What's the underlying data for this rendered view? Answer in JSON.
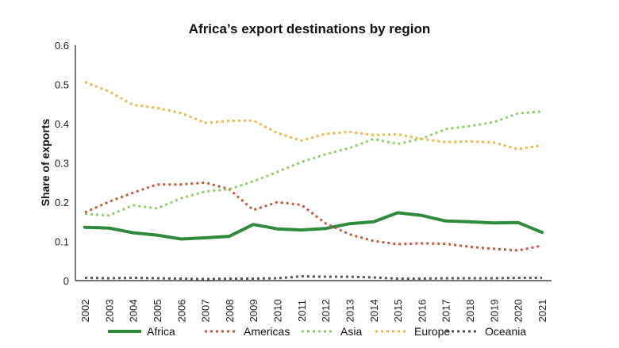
{
  "chart_data": {
    "type": "line",
    "title": "Africa’s export destinations by region",
    "xlabel": "",
    "ylabel": "Share of exports",
    "ylim": [
      0,
      0.6
    ],
    "yticks": [
      "0",
      "0.1",
      "0.2",
      "0.3",
      "0.4",
      "0.5",
      "0.6"
    ],
    "x": [
      "2002",
      "2003",
      "2004",
      "2005",
      "2006",
      "2007",
      "2008",
      "2009",
      "2010",
      "2011",
      "2012",
      "2013",
      "2014",
      "2015",
      "2016",
      "2017",
      "2018",
      "2019",
      "2020",
      "2021"
    ],
    "legend_position": "bottom",
    "grid": false,
    "series": [
      {
        "name": "Africa",
        "color": "#2e8b3e",
        "style": "solid",
        "values": [
          0.136,
          0.134,
          0.122,
          0.116,
          0.106,
          0.109,
          0.113,
          0.143,
          0.132,
          0.129,
          0.133,
          0.145,
          0.15,
          0.173,
          0.166,
          0.152,
          0.15,
          0.147,
          0.148,
          0.123
        ]
      },
      {
        "name": "Americas",
        "color": "#c9573a",
        "style": "dotted",
        "values": [
          0.174,
          0.201,
          0.224,
          0.245,
          0.245,
          0.25,
          0.233,
          0.18,
          0.2,
          0.193,
          0.146,
          0.118,
          0.101,
          0.093,
          0.095,
          0.094,
          0.086,
          0.081,
          0.077,
          0.089
        ]
      },
      {
        "name": "Asia",
        "color": "#8fcc6a",
        "style": "dotted",
        "values": [
          0.17,
          0.166,
          0.192,
          0.184,
          0.21,
          0.227,
          0.233,
          0.253,
          0.277,
          0.302,
          0.322,
          0.338,
          0.361,
          0.348,
          0.362,
          0.386,
          0.394,
          0.404,
          0.426,
          0.431
        ]
      },
      {
        "name": "Europe",
        "color": "#f2b54a",
        "style": "dotted",
        "values": [
          0.506,
          0.482,
          0.448,
          0.44,
          0.427,
          0.402,
          0.407,
          0.408,
          0.376,
          0.357,
          0.374,
          0.379,
          0.371,
          0.373,
          0.361,
          0.353,
          0.355,
          0.352,
          0.335,
          0.345
        ]
      },
      {
        "name": "Oceania",
        "color": "#555555",
        "style": "dotted",
        "values": [
          0.007,
          0.006,
          0.007,
          0.006,
          0.005,
          0.004,
          0.005,
          0.005,
          0.006,
          0.011,
          0.01,
          0.01,
          0.008,
          0.005,
          0.005,
          0.006,
          0.006,
          0.006,
          0.007,
          0.007
        ]
      }
    ]
  }
}
